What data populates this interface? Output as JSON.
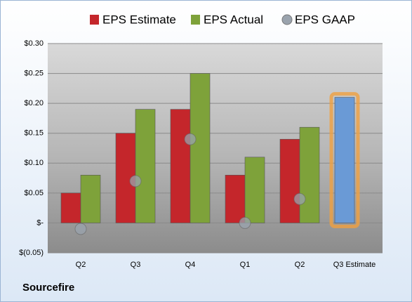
{
  "chart_data": {
    "type": "bar",
    "title": "Sourcefire",
    "categories": [
      "Q2",
      "Q3",
      "Q4",
      "Q1",
      "Q2",
      "Q3 Estimate"
    ],
    "series": [
      {
        "name": "EPS Estimate",
        "color": "#c4262b",
        "values": [
          0.05,
          0.15,
          0.19,
          0.08,
          0.14,
          0.21
        ],
        "point_colors": [
          "#c4262b",
          "#c4262b",
          "#c4262b",
          "#c4262b",
          "#c4262b",
          "#6a9ad6"
        ]
      },
      {
        "name": "EPS Actual",
        "color": "#7ea23a",
        "values": [
          0.08,
          0.19,
          0.25,
          0.11,
          0.16,
          null
        ]
      },
      {
        "name": "EPS GAAP",
        "color": "#9aa3ad",
        "type": "bubble",
        "values": [
          -0.01,
          0.07,
          0.14,
          0.0,
          0.04,
          null
        ]
      }
    ],
    "ylim": [
      -0.05,
      0.3
    ],
    "yticks": [
      {
        "value": -0.05,
        "label": "$(0.05)"
      },
      {
        "value": 0,
        "label": "$-"
      },
      {
        "value": 0.05,
        "label": "$0.05"
      },
      {
        "value": 0.1,
        "label": "$0.10"
      },
      {
        "value": 0.15,
        "label": "$0.15"
      },
      {
        "value": 0.2,
        "label": "$0.20"
      },
      {
        "value": 0.25,
        "label": "$0.25"
      },
      {
        "value": 0.3,
        "label": "$0.30"
      }
    ],
    "grid": true
  }
}
